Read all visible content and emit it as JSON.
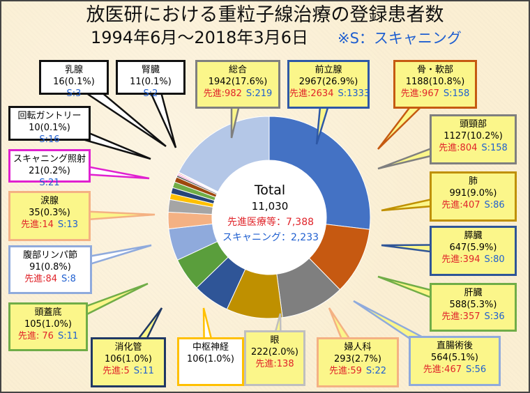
{
  "title": {
    "line1": "放医研における重粒子線治療の登録患者数",
    "line2": "1994年6月～2018年3月6日",
    "note": "※S：スキャニング"
  },
  "center": {
    "total_label": "Total",
    "total_value": "11,030",
    "advanced": "先進医療等：7,388",
    "scanning": "スキャニング：2,233"
  },
  "colors": {
    "background": "#fbefd3",
    "red_text": "#e0242a",
    "blue_text": "#1f5fd0",
    "callout_fill": "#fbf68a",
    "callout_fill_white": "#ffffff"
  },
  "chart_data": {
    "type": "pie",
    "style": "donut",
    "title": "放医研における重粒子線治療の登録患者数",
    "total": 11030,
    "slices": [
      {
        "name": "前立腺",
        "value": 2967,
        "percent": "26.9%",
        "advanced": 2634,
        "scanning": 1333,
        "color": "#4472c4"
      },
      {
        "name": "骨・軟部",
        "value": 1188,
        "percent": "10.8%",
        "advanced": 967,
        "scanning": 158,
        "color": "#c65911"
      },
      {
        "name": "頭頸部",
        "value": 1127,
        "percent": "10.2%",
        "advanced": 804,
        "scanning": 158,
        "color": "#7f7f7f"
      },
      {
        "name": "肺",
        "value": 991,
        "percent": "9.0%",
        "advanced": 407,
        "scanning": 86,
        "color": "#bf9000"
      },
      {
        "name": "膵臓",
        "value": 647,
        "percent": "5.9%",
        "advanced": 394,
        "scanning": 80,
        "color": "#2f5597"
      },
      {
        "name": "肝臓",
        "value": 588,
        "percent": "5.3%",
        "advanced": 357,
        "scanning": 36,
        "color": "#5a9e3c"
      },
      {
        "name": "直腸術後",
        "value": 564,
        "percent": "5.1%",
        "advanced": 467,
        "scanning": 56,
        "color": "#8faadc"
      },
      {
        "name": "婦人科",
        "value": 293,
        "percent": "2.7%",
        "advanced": 59,
        "scanning": 22,
        "color": "#f4b183"
      },
      {
        "name": "眼",
        "value": 222,
        "percent": "2.0%",
        "advanced": 138,
        "scanning": null,
        "color": "#a5a5a5"
      },
      {
        "name": "中枢神経",
        "value": 106,
        "percent": "1.0%",
        "advanced": null,
        "scanning": null,
        "color": "#ffc000"
      },
      {
        "name": "消化管",
        "value": 106,
        "percent": "1.0%",
        "advanced": 5,
        "scanning": 11,
        "color": "#264478"
      },
      {
        "name": "頭蓋底",
        "value": 105,
        "percent": "1.0%",
        "advanced": 76,
        "scanning": 11,
        "color": "#70ad47"
      },
      {
        "name": "腹部リンパ節",
        "value": 91,
        "percent": "0.8%",
        "advanced": 84,
        "scanning": 8,
        "color": "#9e480e"
      },
      {
        "name": "涙腺",
        "value": 35,
        "percent": "0.3%",
        "advanced": 14,
        "scanning": 13,
        "color": "#636363"
      },
      {
        "name": "スキャニング照射",
        "value": 21,
        "percent": "0.2%",
        "advanced": null,
        "scanning": 21,
        "color": "#ff3fbf"
      },
      {
        "name": "回転ガントリー",
        "value": 10,
        "percent": "0.1%",
        "advanced": null,
        "scanning": 16,
        "color": "#5b9bd5"
      },
      {
        "name": "乳腺",
        "value": 16,
        "percent": "0.1%",
        "advanced": null,
        "scanning": 3,
        "color": "#c00000"
      },
      {
        "name": "腎臓",
        "value": 11,
        "percent": "0.1%",
        "advanced": null,
        "scanning": 2,
        "color": "#7030a0"
      },
      {
        "name": "総合",
        "value": 1942,
        "percent": "17.6%",
        "advanced": 982,
        "scanning": 219,
        "color": "#b4c7e7"
      }
    ]
  },
  "callouts": [
    {
      "key": "prostate",
      "name": "前立腺",
      "count": "2967(26.9%)",
      "adv": "先進:2634",
      "scan": "S:1333",
      "fill": "#fbf68a",
      "border": "#2e58a6",
      "tail": "down"
    },
    {
      "key": "bone",
      "name": "骨・軟部",
      "count": "1188(10.8%)",
      "adv": "先進:967",
      "scan": "S:158",
      "fill": "#fbf68a",
      "border": "#c55a11",
      "tail": "down-left"
    },
    {
      "key": "headneck",
      "name": "頭頸部",
      "count": "1127(10.2%)",
      "adv": "先進:804",
      "scan": "S:158",
      "fill": "#fbf68a",
      "border": "#7f7f7f",
      "tail": "left"
    },
    {
      "key": "lung",
      "name": "肺",
      "count": "991(9.0%)",
      "adv": "先進:407",
      "scan": "S:86",
      "fill": "#fbf68a",
      "border": "#bf9000",
      "tail": "left"
    },
    {
      "key": "pancreas",
      "name": "膵臓",
      "count": "647(5.9%)",
      "adv": "先進:394",
      "scan": "S:80",
      "fill": "#fbf68a",
      "border": "#2f5597",
      "tail": "left"
    },
    {
      "key": "liver",
      "name": "肝臓",
      "count": "588(5.3%)",
      "adv": "先進:357",
      "scan": "S:36",
      "fill": "#fbf68a",
      "border": "#70ad47",
      "tail": "left"
    },
    {
      "key": "rectum",
      "name": "直腸術後",
      "count": "564(5.1%)",
      "adv": "先進:467",
      "scan": "S:56",
      "fill": "#fbf68a",
      "border": "#8faadc",
      "tail": "up-left"
    },
    {
      "key": "gyn",
      "name": "婦人科",
      "count": "293(2.7%)",
      "adv": "先進:59",
      "scan": "S:22",
      "fill": "#fbf68a",
      "border": "#f4b183",
      "tail": "up"
    },
    {
      "key": "eye",
      "name": "眼",
      "count": "222(2.0%)",
      "adv": "先進:138",
      "scan": "",
      "fill": "#fbf68a",
      "border": "#bfbfbf",
      "tail": "up"
    },
    {
      "key": "cns",
      "name": "中枢神経",
      "count": "106(1.0%)",
      "adv": "",
      "scan": "",
      "fill": "#ffffff",
      "border": "#ffc000",
      "tail": "up"
    },
    {
      "key": "gi",
      "name": "消化管",
      "count": "106(1.0%)",
      "adv": "先進:5",
      "scan": "S:11",
      "fill": "#fbf68a",
      "border": "#203864",
      "tail": "up"
    },
    {
      "key": "skullbase",
      "name": "頭蓋底",
      "count": "105(1.0%)",
      "adv": "先進: 76",
      "scan": "S:11",
      "fill": "#fbf68a",
      "border": "#70ad47",
      "tail": "up-right"
    },
    {
      "key": "lymph",
      "name": "腹部リンパ節",
      "count": "91(0.8%)",
      "adv": "先進:84",
      "scan": "S:8",
      "fill": "#ffffff",
      "border": "#8faadc",
      "tail": "right"
    },
    {
      "key": "lacrimal",
      "name": "涙腺",
      "count": "35(0.3%)",
      "adv": "先進:14",
      "scan": "S:13",
      "fill": "#fbf68a",
      "border": "#f4b183",
      "tail": "right"
    },
    {
      "key": "scanirr",
      "name": "スキャニング照射",
      "count": "21(0.2%)",
      "adv": "",
      "scan": "S:21",
      "fill": "#ffffff",
      "border": "#e020d0",
      "tail": "right"
    },
    {
      "key": "gantry",
      "name": "回転ガントリー",
      "count": "10(0.1%)",
      "adv": "",
      "scan": "S:16",
      "fill": "#ffffff",
      "border": "#111111",
      "tail": "right"
    },
    {
      "key": "breast",
      "name": "乳腺",
      "count": "16(0.1%)",
      "adv": "",
      "scan": "S:3",
      "fill": "#ffffff",
      "border": "#111111",
      "tail": "down-right"
    },
    {
      "key": "kidney",
      "name": "腎臓",
      "count": "11(0.1%)",
      "adv": "",
      "scan": "S:2",
      "fill": "#ffffff",
      "border": "#111111",
      "tail": "down-right"
    },
    {
      "key": "sogo",
      "name": "総合",
      "count": "1942(17.6%)",
      "adv": "先進:982",
      "scan": "S:219",
      "fill": "#fbf68a",
      "border": "#7f7f7f",
      "tail": "down"
    }
  ]
}
